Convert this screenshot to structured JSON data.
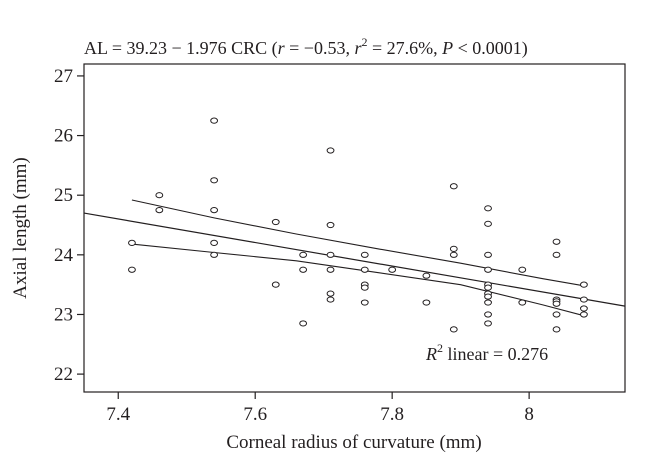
{
  "chart_data": {
    "type": "scatter",
    "title": "AL = 39.23 − 1.976 CRC (r = −0.53, r² = 27.6%, P < 0.0001)",
    "title_parts": {
      "prefix": "AL = 39.23 − 1.976 CRC (",
      "r_symbol": "r",
      "r_value": " = −0.53, ",
      "r2_symbol": "r",
      "r2_exp": "2",
      "r2_value": " = 27.6%, ",
      "p_symbol": "P",
      "p_value": " < 0.0001)"
    },
    "xlabel": "Corneal radius of curvature (mm)",
    "ylabel": "Axial length (mm)",
    "xlim": [
      7.35,
      8.14
    ],
    "ylim": [
      21.7,
      27.2
    ],
    "x_ticks": [
      7.4,
      7.6,
      7.8,
      8.0
    ],
    "x_tick_labels": [
      "7.4",
      "7.6",
      "7.8",
      "8"
    ],
    "y_ticks": [
      22,
      23,
      24,
      25,
      26,
      27
    ],
    "y_tick_labels": [
      "22",
      "23",
      "24",
      "25",
      "26",
      "27"
    ],
    "grid": false,
    "annotation": {
      "symbol": "R",
      "exp": "2",
      "text": " linear = 0.276",
      "position": "bottom-right"
    },
    "points": [
      {
        "x": 7.42,
        "y": 24.2
      },
      {
        "x": 7.42,
        "y": 23.75
      },
      {
        "x": 7.46,
        "y": 25.0
      },
      {
        "x": 7.46,
        "y": 24.75
      },
      {
        "x": 7.54,
        "y": 26.25
      },
      {
        "x": 7.54,
        "y": 25.25
      },
      {
        "x": 7.54,
        "y": 24.75
      },
      {
        "x": 7.54,
        "y": 24.2
      },
      {
        "x": 7.54,
        "y": 24.0
      },
      {
        "x": 7.63,
        "y": 24.55
      },
      {
        "x": 7.63,
        "y": 23.5
      },
      {
        "x": 7.67,
        "y": 24.0
      },
      {
        "x": 7.67,
        "y": 23.75
      },
      {
        "x": 7.67,
        "y": 22.85
      },
      {
        "x": 7.71,
        "y": 25.75
      },
      {
        "x": 7.71,
        "y": 24.5
      },
      {
        "x": 7.71,
        "y": 24.0
      },
      {
        "x": 7.71,
        "y": 23.75
      },
      {
        "x": 7.71,
        "y": 23.35
      },
      {
        "x": 7.71,
        "y": 23.25
      },
      {
        "x": 7.76,
        "y": 24.0
      },
      {
        "x": 7.76,
        "y": 23.75
      },
      {
        "x": 7.76,
        "y": 23.5
      },
      {
        "x": 7.76,
        "y": 23.45
      },
      {
        "x": 7.76,
        "y": 23.2
      },
      {
        "x": 7.8,
        "y": 23.75
      },
      {
        "x": 7.85,
        "y": 23.65
      },
      {
        "x": 7.85,
        "y": 23.2
      },
      {
        "x": 7.89,
        "y": 25.15
      },
      {
        "x": 7.89,
        "y": 24.1
      },
      {
        "x": 7.89,
        "y": 24.0
      },
      {
        "x": 7.89,
        "y": 22.75
      },
      {
        "x": 7.94,
        "y": 24.78
      },
      {
        "x": 7.94,
        "y": 24.52
      },
      {
        "x": 7.94,
        "y": 24.0
      },
      {
        "x": 7.94,
        "y": 23.75
      },
      {
        "x": 7.94,
        "y": 23.5
      },
      {
        "x": 7.94,
        "y": 23.45
      },
      {
        "x": 7.94,
        "y": 23.35
      },
      {
        "x": 7.94,
        "y": 23.3
      },
      {
        "x": 7.94,
        "y": 23.2
      },
      {
        "x": 7.94,
        "y": 23.0
      },
      {
        "x": 7.94,
        "y": 22.85
      },
      {
        "x": 7.99,
        "y": 23.75
      },
      {
        "x": 7.99,
        "y": 23.2
      },
      {
        "x": 8.04,
        "y": 24.22
      },
      {
        "x": 8.04,
        "y": 24.0
      },
      {
        "x": 8.04,
        "y": 23.25
      },
      {
        "x": 8.04,
        "y": 23.22
      },
      {
        "x": 8.04,
        "y": 23.18
      },
      {
        "x": 8.04,
        "y": 23.0
      },
      {
        "x": 8.04,
        "y": 22.75
      },
      {
        "x": 8.08,
        "y": 23.5
      },
      {
        "x": 8.08,
        "y": 23.25
      },
      {
        "x": 8.08,
        "y": 23.1
      },
      {
        "x": 8.08,
        "y": 23.0
      }
    ],
    "fit_line": {
      "x1": 7.35,
      "y1": 24.7,
      "x2": 8.14,
      "y2": 23.14
    },
    "ci_upper": {
      "x": [
        7.42,
        7.54,
        7.66,
        7.78,
        7.9,
        8.02,
        8.08
      ],
      "y": [
        24.92,
        24.62,
        24.35,
        24.1,
        23.86,
        23.6,
        23.48
      ]
    },
    "ci_lower": {
      "x": [
        7.42,
        7.54,
        7.66,
        7.78,
        7.9,
        8.02,
        8.08
      ],
      "y": [
        24.18,
        24.04,
        23.9,
        23.7,
        23.5,
        23.16,
        22.98
      ]
    }
  }
}
